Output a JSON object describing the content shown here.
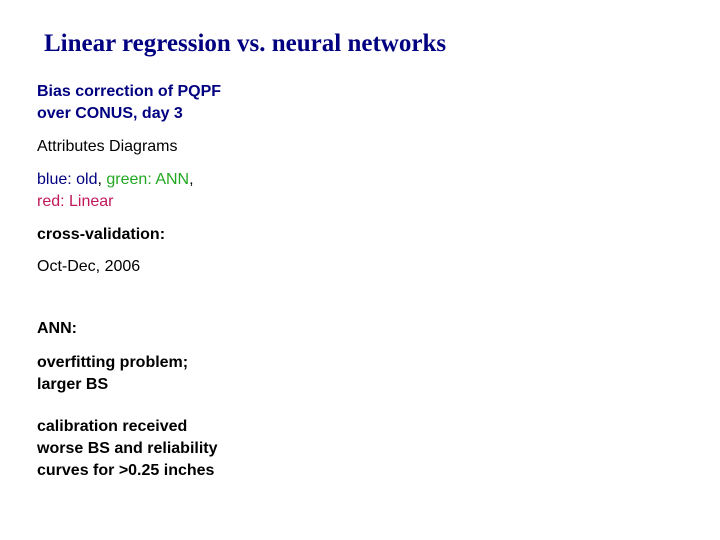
{
  "slide": {
    "title": "Linear regression vs. neural networks",
    "bias_correction": {
      "line1": "Bias correction of PQPF",
      "line2": "over CONUS, day 3"
    },
    "attributes": "Attributes Diagrams",
    "legend": {
      "blue_label": "blue: old",
      "sep1": ", ",
      "green_label": "green: ANN",
      "sep2": ",",
      "red_label": "red: Linear",
      "colors": {
        "blue": "#000080",
        "green": "#22a822",
        "red": "#c2185b",
        "comma": "#000000"
      }
    },
    "cross_validation": "cross-validation:",
    "period": "Oct-Dec, 2006",
    "ann_heading": "ANN:",
    "ann_note": {
      "line1": "overfitting problem;",
      "line2": "larger BS"
    },
    "calibration_note": {
      "line1": "calibration received",
      "line2": "worse BS and reliability",
      "line3": "curves for >0.25 inches"
    }
  }
}
